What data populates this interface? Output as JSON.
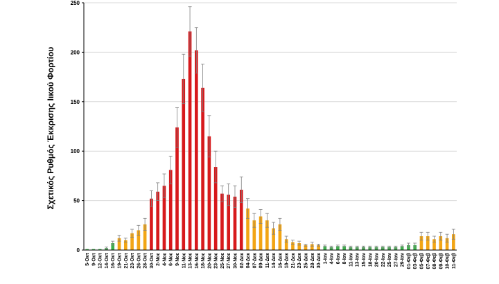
{
  "chart_data": {
    "type": "bar",
    "ylabel": "Σχετικός Ρυθμός Έκκρισης Ιικού Φορτίου",
    "ylim": [
      0,
      250
    ],
    "yticks": [
      0,
      50,
      100,
      150,
      200,
      250
    ],
    "grid": true,
    "error_bars": true,
    "colors": {
      "green": "#3cb14a",
      "orange": "#f2a514",
      "red": "#d7191c",
      "axis": "#000000",
      "grid": "#d9d9d9"
    },
    "categories": [
      "5-Οκτ",
      "9-Οκτ",
      "12-Οκτ",
      "14-Οκτ",
      "16-Οκτ",
      "19-Οκτ",
      "21-Οκτ",
      "23-Οκτ",
      "26-Οκτ",
      "28-Οκτ",
      "30-Οκτ",
      "2-Νοε",
      "4-Νοε",
      "6-Νοε",
      "9-Νοε",
      "11-Νοε",
      "13-Νοε",
      "16-Νοε",
      "18-Νοε",
      "20-Νοε",
      "23-Νοε",
      "25-Νοε",
      "27-Νοε",
      "30-Νοε",
      "02-Δεκ",
      "04-Δεκ",
      "07-Δεκ",
      "09-Δεκ",
      "11-Δεκ",
      "14-Δεκ",
      "16-Δεκ",
      "18-Δεκ",
      "21-Δεκ",
      "23-Δεκ",
      "25-Δεκ",
      "28-Δεκ",
      "30-Δεκ",
      "1-Ιαν",
      "4-Ιαν",
      "6-Ιαν",
      "8-Ιαν",
      "11-Ιαν",
      "13-Ιαν",
      "15-Ιαν",
      "18-Ιαν",
      "20-Ιαν",
      "22-Ιαν",
      "25-Ιαν",
      "27-Ιαν",
      "29-Ιαν",
      "01-Φεβ",
      "03-Φεβ",
      "05-Φεβ",
      "07-Φεβ",
      "08-Φεβ",
      "09-Φεβ",
      "10-Φεβ",
      "11-Φεβ"
    ],
    "values": [
      1,
      1,
      1,
      2,
      7,
      12,
      10,
      17,
      20,
      26,
      52,
      59,
      65,
      81,
      124,
      173,
      221,
      202,
      164,
      115,
      84,
      57,
      56,
      54,
      61,
      42,
      30,
      34,
      30,
      22,
      26,
      11,
      8,
      7,
      5,
      6,
      5,
      4,
      3,
      4,
      4,
      3,
      3,
      3,
      3,
      3,
      3,
      3,
      3,
      4,
      5,
      5,
      14,
      14,
      11,
      14,
      12,
      16
    ],
    "errors": [
      0,
      0,
      0,
      1,
      2,
      3,
      2,
      4,
      5,
      6,
      8,
      9,
      12,
      14,
      20,
      25,
      25,
      23,
      24,
      21,
      16,
      8,
      11,
      11,
      13,
      10,
      7,
      7,
      7,
      6,
      6,
      3,
      2,
      2,
      1,
      2,
      1,
      1,
      1,
      1,
      1,
      1,
      1,
      1,
      1,
      1,
      1,
      1,
      1,
      1,
      2,
      2,
      4,
      4,
      3,
      4,
      4,
      5
    ],
    "bar_colors": [
      "green",
      "green",
      "green",
      "green",
      "green",
      "orange",
      "orange",
      "orange",
      "orange",
      "orange",
      "red",
      "red",
      "red",
      "red",
      "red",
      "red",
      "red",
      "red",
      "red",
      "red",
      "red",
      "red",
      "red",
      "red",
      "red",
      "orange",
      "orange",
      "orange",
      "orange",
      "orange",
      "orange",
      "orange",
      "orange",
      "orange",
      "orange",
      "orange",
      "orange",
      "green",
      "green",
      "green",
      "green",
      "green",
      "green",
      "green",
      "green",
      "green",
      "green",
      "green",
      "green",
      "green",
      "green",
      "green",
      "orange",
      "orange",
      "orange",
      "orange",
      "orange",
      "orange"
    ]
  }
}
